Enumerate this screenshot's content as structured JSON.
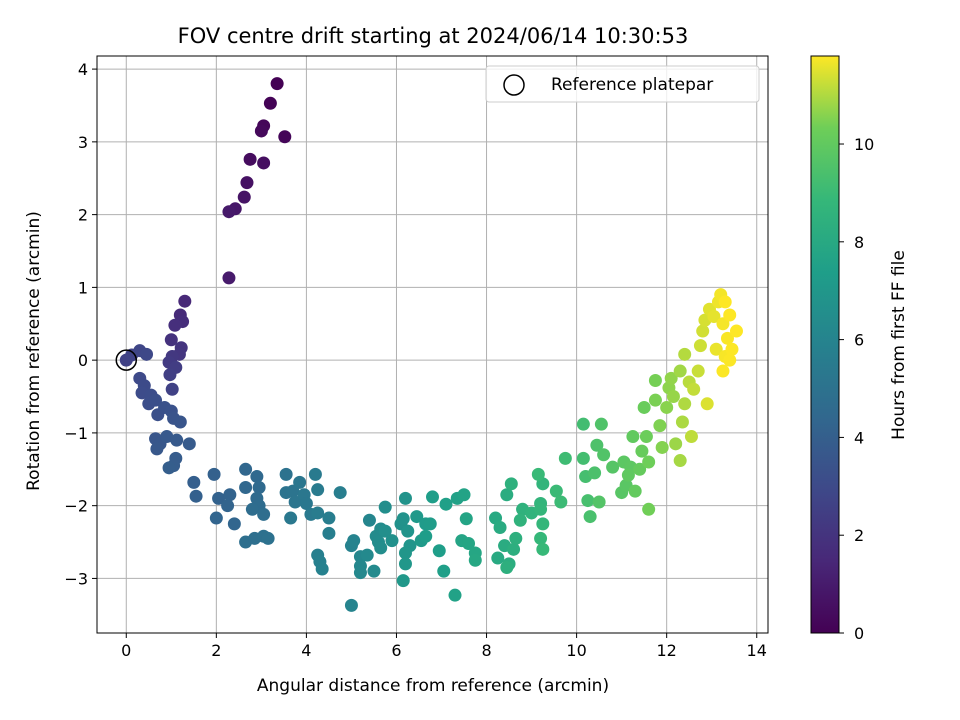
{
  "chart_data": {
    "type": "scatter",
    "title": "FOV centre drift starting at 2024/06/14 10:30:53",
    "xlabel": "Angular distance from reference (arcmin)",
    "ylabel": "Rotation from reference (arcmin)",
    "xlim": [
      -0.65,
      14.25
    ],
    "ylim": [
      -3.75,
      4.18
    ],
    "xticks": [
      0,
      2,
      4,
      6,
      8,
      10,
      12,
      14
    ],
    "yticks": [
      -3,
      -2,
      -1,
      0,
      1,
      2,
      3,
      4
    ],
    "grid": true,
    "legend": {
      "placement": "top-right",
      "entries": [
        "Reference platepar"
      ]
    },
    "reference_point": {
      "x": 0,
      "y": 0,
      "label": "Reference platepar"
    },
    "colorbar": {
      "label": "Hours from first FF file",
      "colormap": "viridis",
      "range": [
        0,
        11.8
      ],
      "ticks": [
        0,
        2,
        4,
        6,
        8,
        10
      ]
    },
    "series": [
      {
        "color_by": "hours",
        "points": [
          [
            3.35,
            3.8,
            0.0
          ],
          [
            3.2,
            3.53,
            0.08
          ],
          [
            3.52,
            3.07,
            0.15
          ],
          [
            3.05,
            3.22,
            0.22
          ],
          [
            3.0,
            3.15,
            0.3
          ],
          [
            2.75,
            2.76,
            0.4
          ],
          [
            3.05,
            2.71,
            0.5
          ],
          [
            2.68,
            2.44,
            0.6
          ],
          [
            2.62,
            2.24,
            0.7
          ],
          [
            2.42,
            2.08,
            0.8
          ],
          [
            2.28,
            2.04,
            0.9
          ],
          [
            2.28,
            1.13,
            1.0
          ],
          [
            1.3,
            0.81,
            1.5
          ],
          [
            1.2,
            0.62,
            1.6
          ],
          [
            1.25,
            0.53,
            1.7
          ],
          [
            1.08,
            0.48,
            1.8
          ],
          [
            1.0,
            0.28,
            1.9
          ],
          [
            1.22,
            0.17,
            2.0
          ],
          [
            1.18,
            0.08,
            2.1
          ],
          [
            1.02,
            0.05,
            2.2
          ],
          [
            0.95,
            -0.03,
            2.3
          ],
          [
            1.1,
            -0.1,
            2.4
          ],
          [
            0.97,
            -0.2,
            2.5
          ],
          [
            1.02,
            -0.4,
            2.6
          ],
          [
            0.0,
            0.0,
            2.6
          ],
          [
            0.12,
            0.07,
            2.7
          ],
          [
            0.3,
            0.13,
            2.8
          ],
          [
            0.45,
            0.08,
            2.9
          ],
          [
            0.3,
            -0.25,
            3.0
          ],
          [
            0.4,
            -0.35,
            3.05
          ],
          [
            0.35,
            -0.45,
            3.1
          ],
          [
            0.55,
            -0.48,
            3.15
          ],
          [
            0.5,
            -0.6,
            3.2
          ],
          [
            0.65,
            -0.55,
            3.25
          ],
          [
            0.7,
            -0.75,
            3.3
          ],
          [
            0.85,
            -0.65,
            3.35
          ],
          [
            1.0,
            -0.7,
            3.4
          ],
          [
            1.05,
            -0.8,
            3.45
          ],
          [
            1.2,
            -0.85,
            3.5
          ],
          [
            0.65,
            -1.08,
            3.55
          ],
          [
            0.75,
            -1.15,
            3.6
          ],
          [
            0.68,
            -1.22,
            3.65
          ],
          [
            0.9,
            -1.05,
            3.7
          ],
          [
            1.12,
            -1.1,
            3.75
          ],
          [
            1.4,
            -1.15,
            3.8
          ],
          [
            1.1,
            -1.35,
            3.85
          ],
          [
            1.05,
            -1.45,
            3.9
          ],
          [
            0.95,
            -1.48,
            3.95
          ],
          [
            1.5,
            -1.68,
            4.0
          ],
          [
            1.55,
            -1.87,
            4.05
          ],
          [
            1.95,
            -1.57,
            4.1
          ],
          [
            2.05,
            -1.9,
            4.15
          ],
          [
            2.3,
            -1.85,
            4.2
          ],
          [
            2.25,
            -2.0,
            4.25
          ],
          [
            2.0,
            -2.17,
            4.3
          ],
          [
            2.4,
            -2.25,
            4.35
          ],
          [
            2.65,
            -1.5,
            4.4
          ],
          [
            2.65,
            -1.75,
            4.45
          ],
          [
            2.9,
            -1.6,
            4.5
          ],
          [
            2.95,
            -1.75,
            4.55
          ],
          [
            2.9,
            -1.9,
            4.6
          ],
          [
            2.95,
            -2.0,
            4.65
          ],
          [
            2.8,
            -2.05,
            4.7
          ],
          [
            3.05,
            -2.12,
            4.75
          ],
          [
            2.65,
            -2.5,
            4.8
          ],
          [
            2.85,
            -2.45,
            4.85
          ],
          [
            3.05,
            -2.42,
            4.9
          ],
          [
            3.15,
            -2.45,
            4.95
          ],
          [
            3.55,
            -1.57,
            5.0
          ],
          [
            3.55,
            -1.82,
            5.05
          ],
          [
            3.7,
            -1.8,
            5.1
          ],
          [
            3.75,
            -1.95,
            5.15
          ],
          [
            3.85,
            -1.68,
            5.2
          ],
          [
            3.95,
            -1.85,
            5.25
          ],
          [
            4.0,
            -1.97,
            5.3
          ],
          [
            3.65,
            -2.17,
            5.35
          ],
          [
            4.1,
            -2.12,
            5.4
          ],
          [
            4.2,
            -1.57,
            5.45
          ],
          [
            4.25,
            -1.78,
            5.5
          ],
          [
            4.25,
            -2.1,
            5.55
          ],
          [
            4.5,
            -2.17,
            5.6
          ],
          [
            4.75,
            -1.82,
            5.65
          ],
          [
            4.5,
            -2.38,
            5.7
          ],
          [
            4.25,
            -2.68,
            5.75
          ],
          [
            4.3,
            -2.77,
            5.8
          ],
          [
            4.35,
            -2.87,
            5.85
          ],
          [
            5.0,
            -2.55,
            5.9
          ],
          [
            5.05,
            -2.48,
            5.95
          ],
          [
            5.0,
            -3.37,
            6.0
          ],
          [
            5.4,
            -2.2,
            6.05
          ],
          [
            5.2,
            -2.7,
            6.1
          ],
          [
            5.2,
            -2.83,
            6.15
          ],
          [
            5.2,
            -2.92,
            6.2
          ],
          [
            5.35,
            -2.68,
            6.25
          ],
          [
            5.5,
            -2.9,
            6.3
          ],
          [
            5.55,
            -2.42,
            6.35
          ],
          [
            5.65,
            -2.32,
            6.4
          ],
          [
            5.6,
            -2.5,
            6.45
          ],
          [
            5.65,
            -2.58,
            6.5
          ],
          [
            5.75,
            -2.02,
            6.55
          ],
          [
            5.75,
            -2.35,
            6.6
          ],
          [
            5.9,
            -2.48,
            6.65
          ],
          [
            6.1,
            -2.25,
            6.7
          ],
          [
            6.15,
            -2.18,
            6.75
          ],
          [
            6.2,
            -1.9,
            6.8
          ],
          [
            6.25,
            -2.35,
            6.85
          ],
          [
            6.3,
            -2.55,
            6.9
          ],
          [
            6.2,
            -2.65,
            6.95
          ],
          [
            6.2,
            -2.8,
            7.0
          ],
          [
            6.15,
            -3.03,
            7.05
          ],
          [
            6.45,
            -2.15,
            7.1
          ],
          [
            6.55,
            -2.48,
            7.15
          ],
          [
            6.65,
            -2.25,
            7.2
          ],
          [
            6.75,
            -2.25,
            7.25
          ],
          [
            6.65,
            -2.42,
            7.3
          ],
          [
            6.8,
            -1.88,
            7.35
          ],
          [
            6.95,
            -2.62,
            7.4
          ],
          [
            7.05,
            -2.9,
            7.45
          ],
          [
            7.1,
            -1.98,
            7.5
          ],
          [
            7.35,
            -1.9,
            7.55
          ],
          [
            7.3,
            -3.23,
            7.6
          ],
          [
            7.5,
            -1.85,
            7.65
          ],
          [
            7.55,
            -2.18,
            7.7
          ],
          [
            7.45,
            -2.48,
            7.75
          ],
          [
            7.6,
            -2.52,
            7.8
          ],
          [
            7.75,
            -2.65,
            7.85
          ],
          [
            7.75,
            -2.75,
            7.9
          ],
          [
            8.2,
            -2.17,
            8.0
          ],
          [
            8.25,
            -2.72,
            8.05
          ],
          [
            8.3,
            -2.3,
            8.1
          ],
          [
            8.4,
            -2.55,
            8.15
          ],
          [
            8.45,
            -1.85,
            8.2
          ],
          [
            8.5,
            -2.8,
            8.25
          ],
          [
            8.6,
            -2.6,
            8.3
          ],
          [
            8.65,
            -2.45,
            8.35
          ],
          [
            8.45,
            -2.85,
            8.4
          ],
          [
            8.55,
            -1.7,
            8.45
          ],
          [
            8.8,
            -2.05,
            8.5
          ],
          [
            8.75,
            -2.2,
            8.55
          ],
          [
            9.0,
            -2.1,
            8.6
          ],
          [
            9.25,
            -1.7,
            8.65
          ],
          [
            9.2,
            -1.97,
            8.7
          ],
          [
            9.2,
            -2.05,
            8.75
          ],
          [
            9.25,
            -2.25,
            8.8
          ],
          [
            9.2,
            -2.45,
            8.85
          ],
          [
            9.25,
            -2.6,
            8.9
          ],
          [
            9.15,
            -1.57,
            8.95
          ],
          [
            9.55,
            -1.8,
            9.0
          ],
          [
            9.65,
            -1.95,
            9.05
          ],
          [
            9.75,
            -1.35,
            9.1
          ],
          [
            10.15,
            -0.88,
            9.2
          ],
          [
            10.15,
            -1.35,
            9.25
          ],
          [
            10.2,
            -1.6,
            9.3
          ],
          [
            10.25,
            -1.93,
            9.35
          ],
          [
            10.3,
            -2.15,
            9.4
          ],
          [
            10.4,
            -1.55,
            9.45
          ],
          [
            10.45,
            -1.17,
            9.5
          ],
          [
            10.55,
            -0.88,
            9.55
          ],
          [
            10.6,
            -1.3,
            9.6
          ],
          [
            10.5,
            -1.95,
            9.65
          ],
          [
            10.8,
            -1.47,
            9.7
          ],
          [
            11.0,
            -1.82,
            9.75
          ],
          [
            11.1,
            -1.72,
            9.8
          ],
          [
            11.05,
            -1.4,
            9.85
          ],
          [
            11.2,
            -1.47,
            9.9
          ],
          [
            11.15,
            -1.58,
            9.95
          ],
          [
            11.25,
            -1.05,
            10.0
          ],
          [
            11.3,
            -1.8,
            10.05
          ],
          [
            11.4,
            -1.5,
            10.1
          ],
          [
            11.45,
            -1.25,
            10.15
          ],
          [
            11.5,
            -0.65,
            10.2
          ],
          [
            11.55,
            -1.05,
            10.25
          ],
          [
            11.6,
            -1.4,
            10.3
          ],
          [
            11.6,
            -2.05,
            10.35
          ],
          [
            11.75,
            -0.28,
            10.4
          ],
          [
            11.75,
            -0.55,
            10.45
          ],
          [
            11.85,
            -0.9,
            10.5
          ],
          [
            11.9,
            -1.2,
            10.55
          ],
          [
            12.0,
            -0.65,
            10.6
          ],
          [
            12.05,
            -0.38,
            10.65
          ],
          [
            12.1,
            -0.25,
            10.7
          ],
          [
            12.15,
            -0.5,
            10.75
          ],
          [
            12.2,
            -1.15,
            10.8
          ],
          [
            12.3,
            -0.15,
            10.85
          ],
          [
            12.3,
            -1.38,
            10.9
          ],
          [
            12.35,
            -0.85,
            10.95
          ],
          [
            12.4,
            -0.6,
            11.0
          ],
          [
            12.4,
            0.08,
            11.05
          ],
          [
            12.5,
            -0.3,
            11.1
          ],
          [
            12.55,
            -1.05,
            11.15
          ],
          [
            12.6,
            -0.4,
            11.2
          ],
          [
            12.7,
            -0.15,
            11.25
          ],
          [
            12.75,
            0.2,
            11.3
          ],
          [
            12.8,
            0.4,
            11.35
          ],
          [
            12.85,
            0.55,
            11.4
          ],
          [
            12.9,
            -0.6,
            11.45
          ],
          [
            12.95,
            0.7,
            11.5
          ],
          [
            13.05,
            0.6,
            11.55
          ],
          [
            13.1,
            0.15,
            11.6
          ],
          [
            13.15,
            0.8,
            11.65
          ],
          [
            13.2,
            0.9,
            11.7
          ],
          [
            13.25,
            0.5,
            11.72
          ],
          [
            13.3,
            0.05,
            11.74
          ],
          [
            13.35,
            0.3,
            11.76
          ],
          [
            13.4,
            0.0,
            11.78
          ],
          [
            13.45,
            0.15,
            11.79
          ],
          [
            13.55,
            0.4,
            11.8
          ],
          [
            13.3,
            0.8,
            11.8
          ],
          [
            13.4,
            0.62,
            11.8
          ],
          [
            13.25,
            -0.15,
            11.78
          ]
        ]
      }
    ]
  }
}
